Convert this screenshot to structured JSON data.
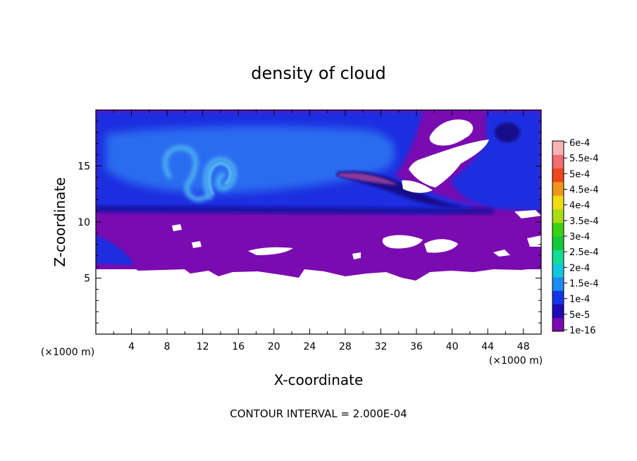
{
  "chart_data": {
    "type": "heatmap",
    "title": "density of cloud",
    "xlabel": "X-coordinate",
    "ylabel": "Z-coordinate",
    "x_unit": "(×1000 m)",
    "z_unit": "(×1000 m)",
    "xlim": [
      0,
      50
    ],
    "ylim": [
      0,
      20
    ],
    "x_ticks": [
      4,
      8,
      12,
      16,
      20,
      24,
      28,
      32,
      36,
      40,
      44,
      48
    ],
    "y_ticks": [
      5,
      10,
      15
    ],
    "footer": "CONTOUR INTERVAL = 2.000E-04",
    "colorbar": {
      "labels": [
        "1e-16",
        "5e-5",
        "1e-4",
        "1.5e-4",
        "2e-4",
        "2.5e-4",
        "3e-4",
        "3.5e-4",
        "4e-4",
        "4.5e-4",
        "5e-4",
        "5.5e-4",
        "6e-4"
      ],
      "colors": [
        "#7a0bb0",
        "#1e0ab4",
        "#1436e6",
        "#1e8cf0",
        "#14c8dc",
        "#14dc96",
        "#14c83c",
        "#3cd214",
        "#aadc14",
        "#f0dc14",
        "#f0961e",
        "#f0461e",
        "#f06e6e",
        "#f8b4b4"
      ]
    }
  }
}
